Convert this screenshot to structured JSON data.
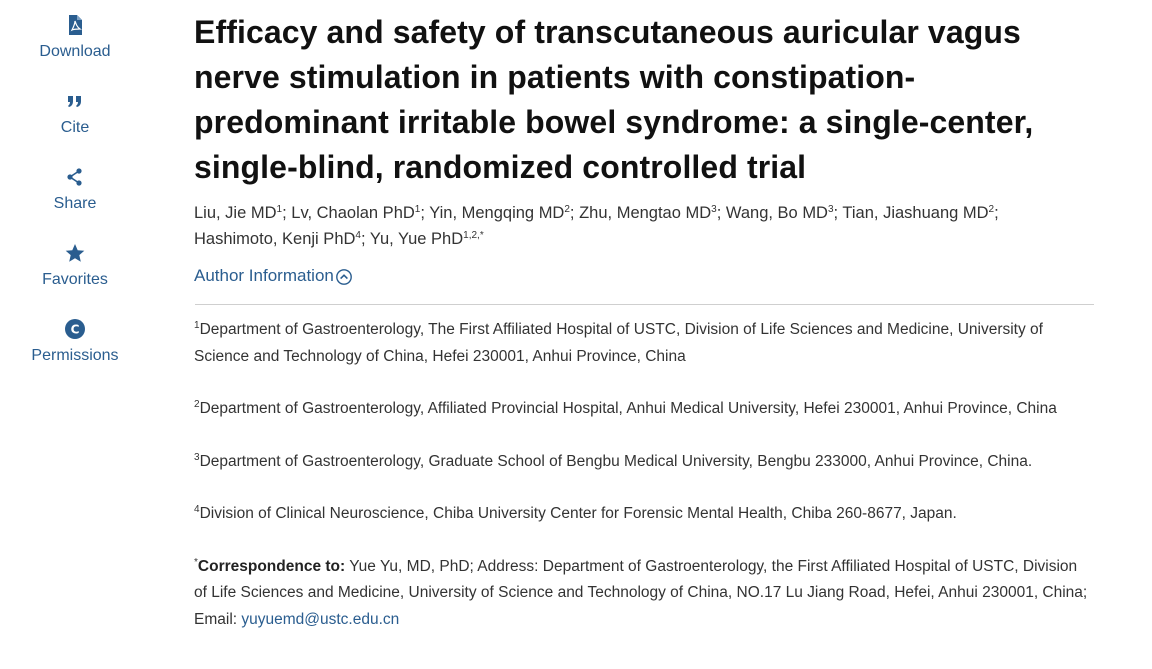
{
  "sidebar": {
    "items": [
      {
        "label": "Download",
        "icon": "pdf-icon"
      },
      {
        "label": "Cite",
        "icon": "quote-icon"
      },
      {
        "label": "Share",
        "icon": "share-icon"
      },
      {
        "label": "Favorites",
        "icon": "star-icon"
      },
      {
        "label": "Permissions",
        "icon": "copyright-icon"
      }
    ]
  },
  "article": {
    "title": "Efficacy and safety of transcutaneous auricular vagus nerve stimulation in patients with constipation-predominant irritable bowel syndrome: a single-center, single-blind, randomized controlled trial",
    "authors": [
      {
        "name": "Liu, Jie MD",
        "sup": "1",
        "sep": "; "
      },
      {
        "name": "Lv, Chaolan PhD",
        "sup": "1",
        "sep": "; "
      },
      {
        "name": "Yin, Mengqing MD",
        "sup": "2",
        "sep": "; "
      },
      {
        "name": "Zhu, Mengtao MD",
        "sup": "3",
        "sep": "; "
      },
      {
        "name": "Wang, Bo MD",
        "sup": "3",
        "sep": "; "
      },
      {
        "name": "Tian, Jiashuang MD",
        "sup": "2",
        "sep": "; "
      },
      {
        "name": "Hashimoto, Kenji PhD",
        "sup": "4",
        "sep": "; "
      },
      {
        "name": "Yu, Yue PhD",
        "sup": "1,2,*",
        "sep": ""
      }
    ],
    "author_info_label": "Author Information",
    "affiliations": [
      {
        "sup": "1",
        "text": "Department of Gastroenterology, The First Affiliated Hospital of USTC, Division of Life Sciences and Medicine, University of Science and Technology of China, Hefei 230001, Anhui Province, China"
      },
      {
        "sup": "2",
        "text": "Department of Gastroenterology, Affiliated Provincial Hospital, Anhui Medical University, Hefei 230001, Anhui Province, China"
      },
      {
        "sup": "3",
        "text": "Department of Gastroenterology, Graduate School of Bengbu Medical University, Bengbu 233000, Anhui Province, China."
      },
      {
        "sup": "4",
        "text": "Division of Clinical Neuroscience, Chiba University Center for Forensic Mental Health, Chiba 260-8677, Japan."
      }
    ],
    "correspondence": {
      "sup": "*",
      "label": "Correspondence to:",
      "text": " Yue Yu, MD, PhD; Address: Department of Gastroenterology, the First Affiliated Hospital of USTC, Division of Life Sciences and Medicine, University of Science and Technology of China, NO.17 Lu Jiang Road, Hefei, Anhui 230001, China; Email: ",
      "email": "yuyuemd@ustc.edu.cn"
    }
  },
  "colors": {
    "link": "#2a5d8f",
    "title": "#111111",
    "divider": "#cfcfcf"
  }
}
